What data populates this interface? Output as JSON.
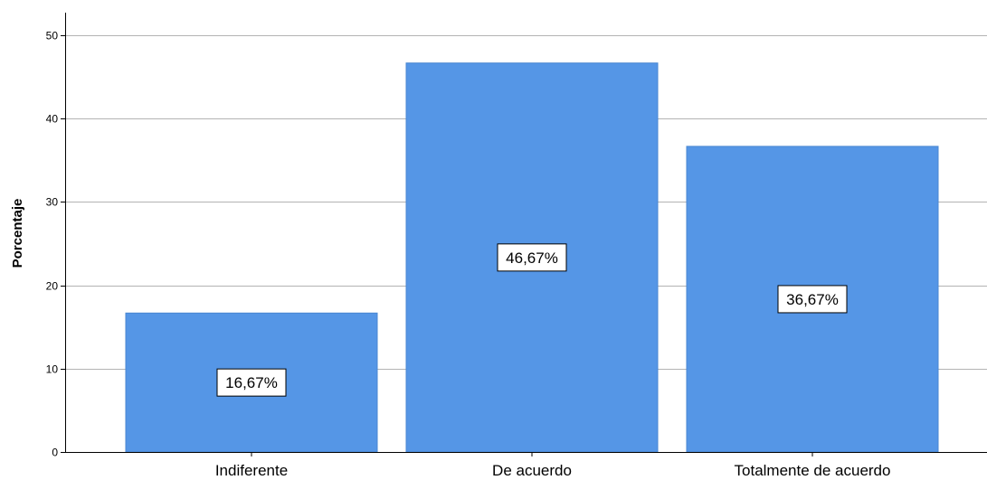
{
  "chart_data": {
    "type": "bar",
    "categories": [
      "Indiferente",
      "De acuerdo",
      "Totalmente de acuerdo"
    ],
    "values": [
      16.67,
      46.67,
      36.67
    ],
    "data_labels": [
      "16,67%",
      "46,67%",
      "36,67%"
    ],
    "ylabel": "Porcentaje",
    "xlabel": "",
    "ylim": [
      0,
      50
    ],
    "yticks": [
      "0",
      "10",
      "20",
      "30",
      "40",
      "50"
    ],
    "grid": true,
    "bar_color": "#5596e6",
    "grid_color": "#b3b3b3"
  }
}
